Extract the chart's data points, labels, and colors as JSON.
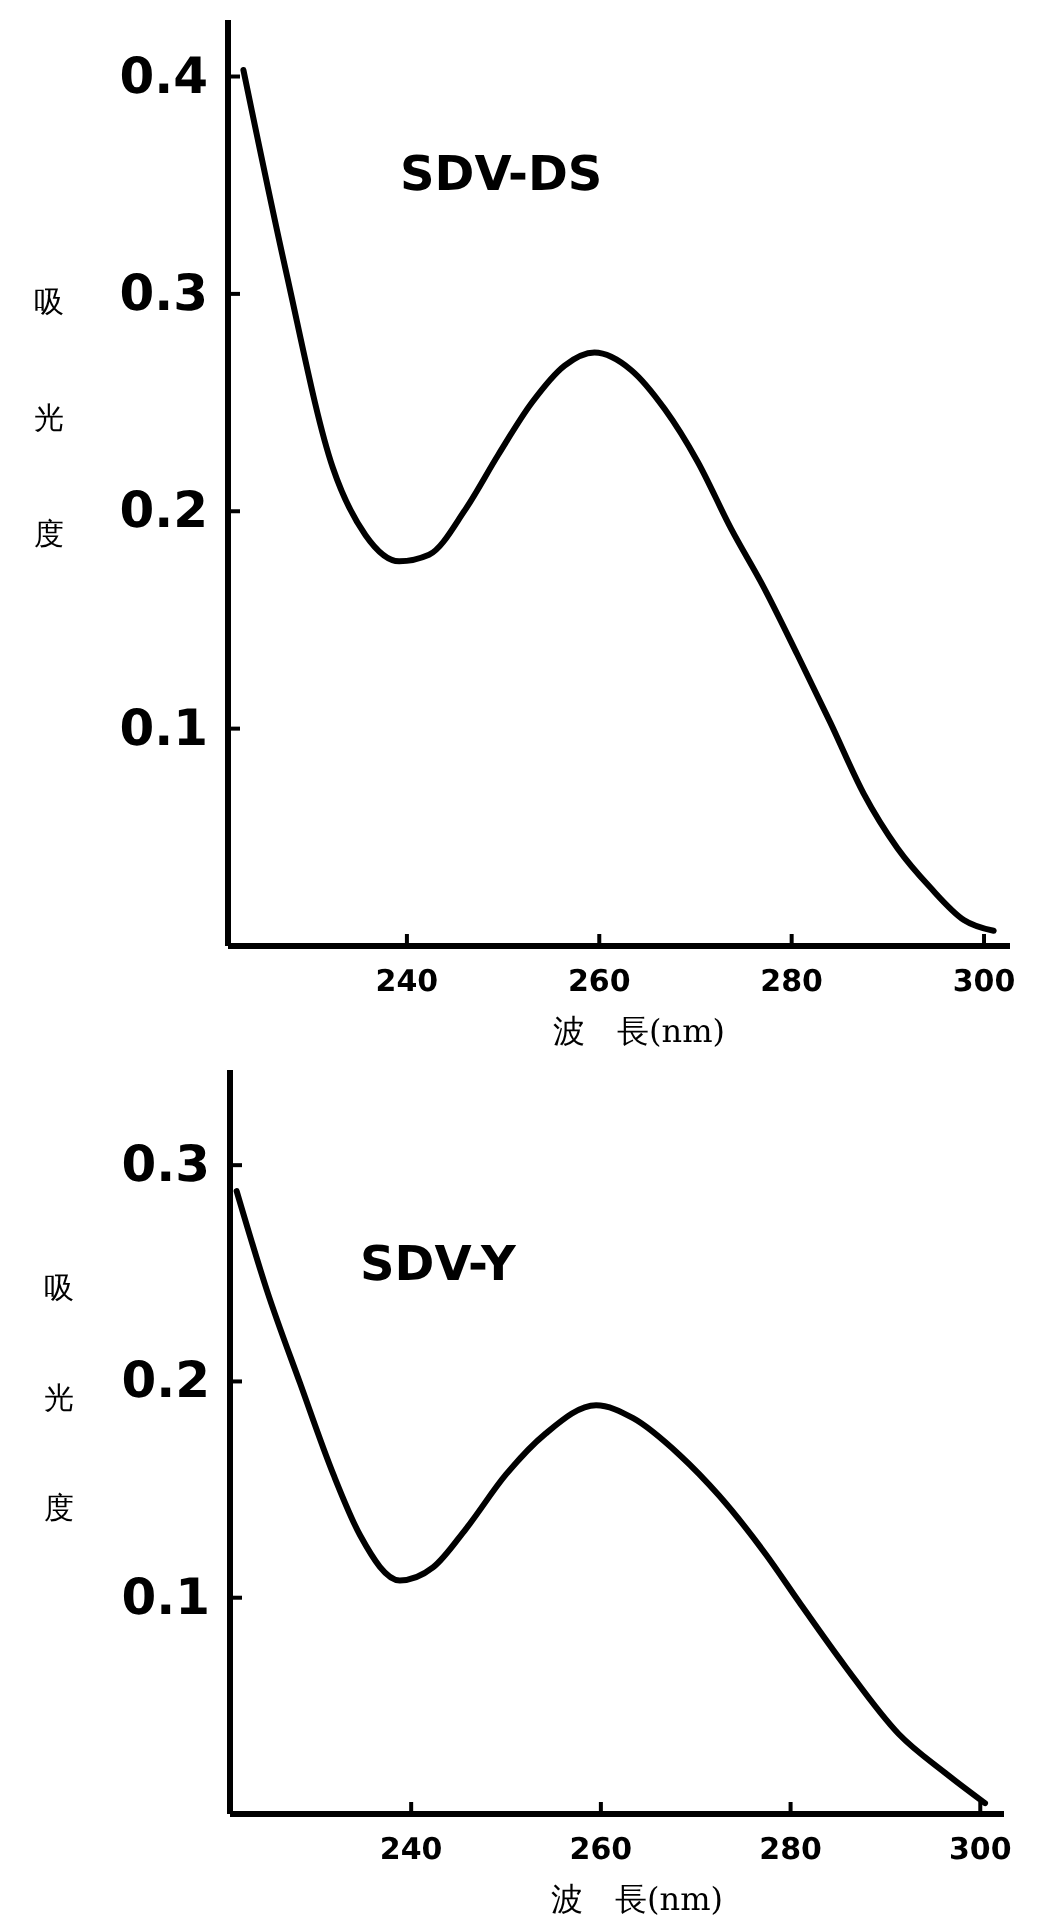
{
  "chart_data": [
    {
      "type": "line",
      "ylabel": "吸光度",
      "xlabel": "波　長(nm)",
      "annotations": [
        "SDV-DS"
      ],
      "xlim": [
        221.4,
        302.7
      ],
      "ylim": [
        0,
        0.426
      ],
      "xticks": [
        240,
        260,
        280,
        300
      ],
      "yticks": [
        0.1,
        0.2,
        0.3,
        0.4
      ],
      "grid": false,
      "marker": "none",
      "line_style": "solid",
      "series": [
        {
          "color": "#000000",
          "x": [
            223,
            227.4,
            232.3,
            235.7,
            239.2,
            242.3,
            246.1,
            249.5,
            253,
            256.4,
            259.5,
            263.3,
            266.8,
            270.2,
            273.7,
            277.1,
            280.6,
            284,
            287.5,
            291,
            294.4,
            297.9,
            301
          ],
          "values": [
            0.403,
            0.311,
            0.22,
            0.189,
            0.177,
            0.18,
            0.201,
            0.226,
            0.25,
            0.267,
            0.273,
            0.265,
            0.247,
            0.223,
            0.192,
            0.165,
            0.134,
            0.103,
            0.07,
            0.045,
            0.027,
            0.012,
            0.007
          ]
        }
      ]
    },
    {
      "type": "line",
      "ylabel": "吸光度",
      "xlabel": "波　長(nm)",
      "annotations": [
        "SDV-Y"
      ],
      "xlim": [
        220.9,
        302.5
      ],
      "ylim": [
        0,
        0.344
      ],
      "xticks": [
        240,
        260,
        280,
        300
      ],
      "yticks": [
        0.1,
        0.2,
        0.3
      ],
      "grid": false,
      "marker": "none",
      "line_style": "solid",
      "series": [
        {
          "color": "#000000",
          "x": [
            221.6,
            224.8,
            228.3,
            231.8,
            234.6,
            238.8,
            242.3,
            245.8,
            250,
            254.2,
            259.5,
            263.4,
            268.3,
            272.5,
            277.4,
            280.9,
            285.8,
            291.4,
            296.3,
            300.5
          ],
          "values": [
            0.288,
            0.242,
            0.199,
            0.157,
            0.129,
            0.108,
            0.114,
            0.132,
            0.157,
            0.176,
            0.189,
            0.183,
            0.166,
            0.147,
            0.12,
            0.098,
            0.068,
            0.037,
            0.019,
            0.005
          ]
        }
      ]
    }
  ]
}
